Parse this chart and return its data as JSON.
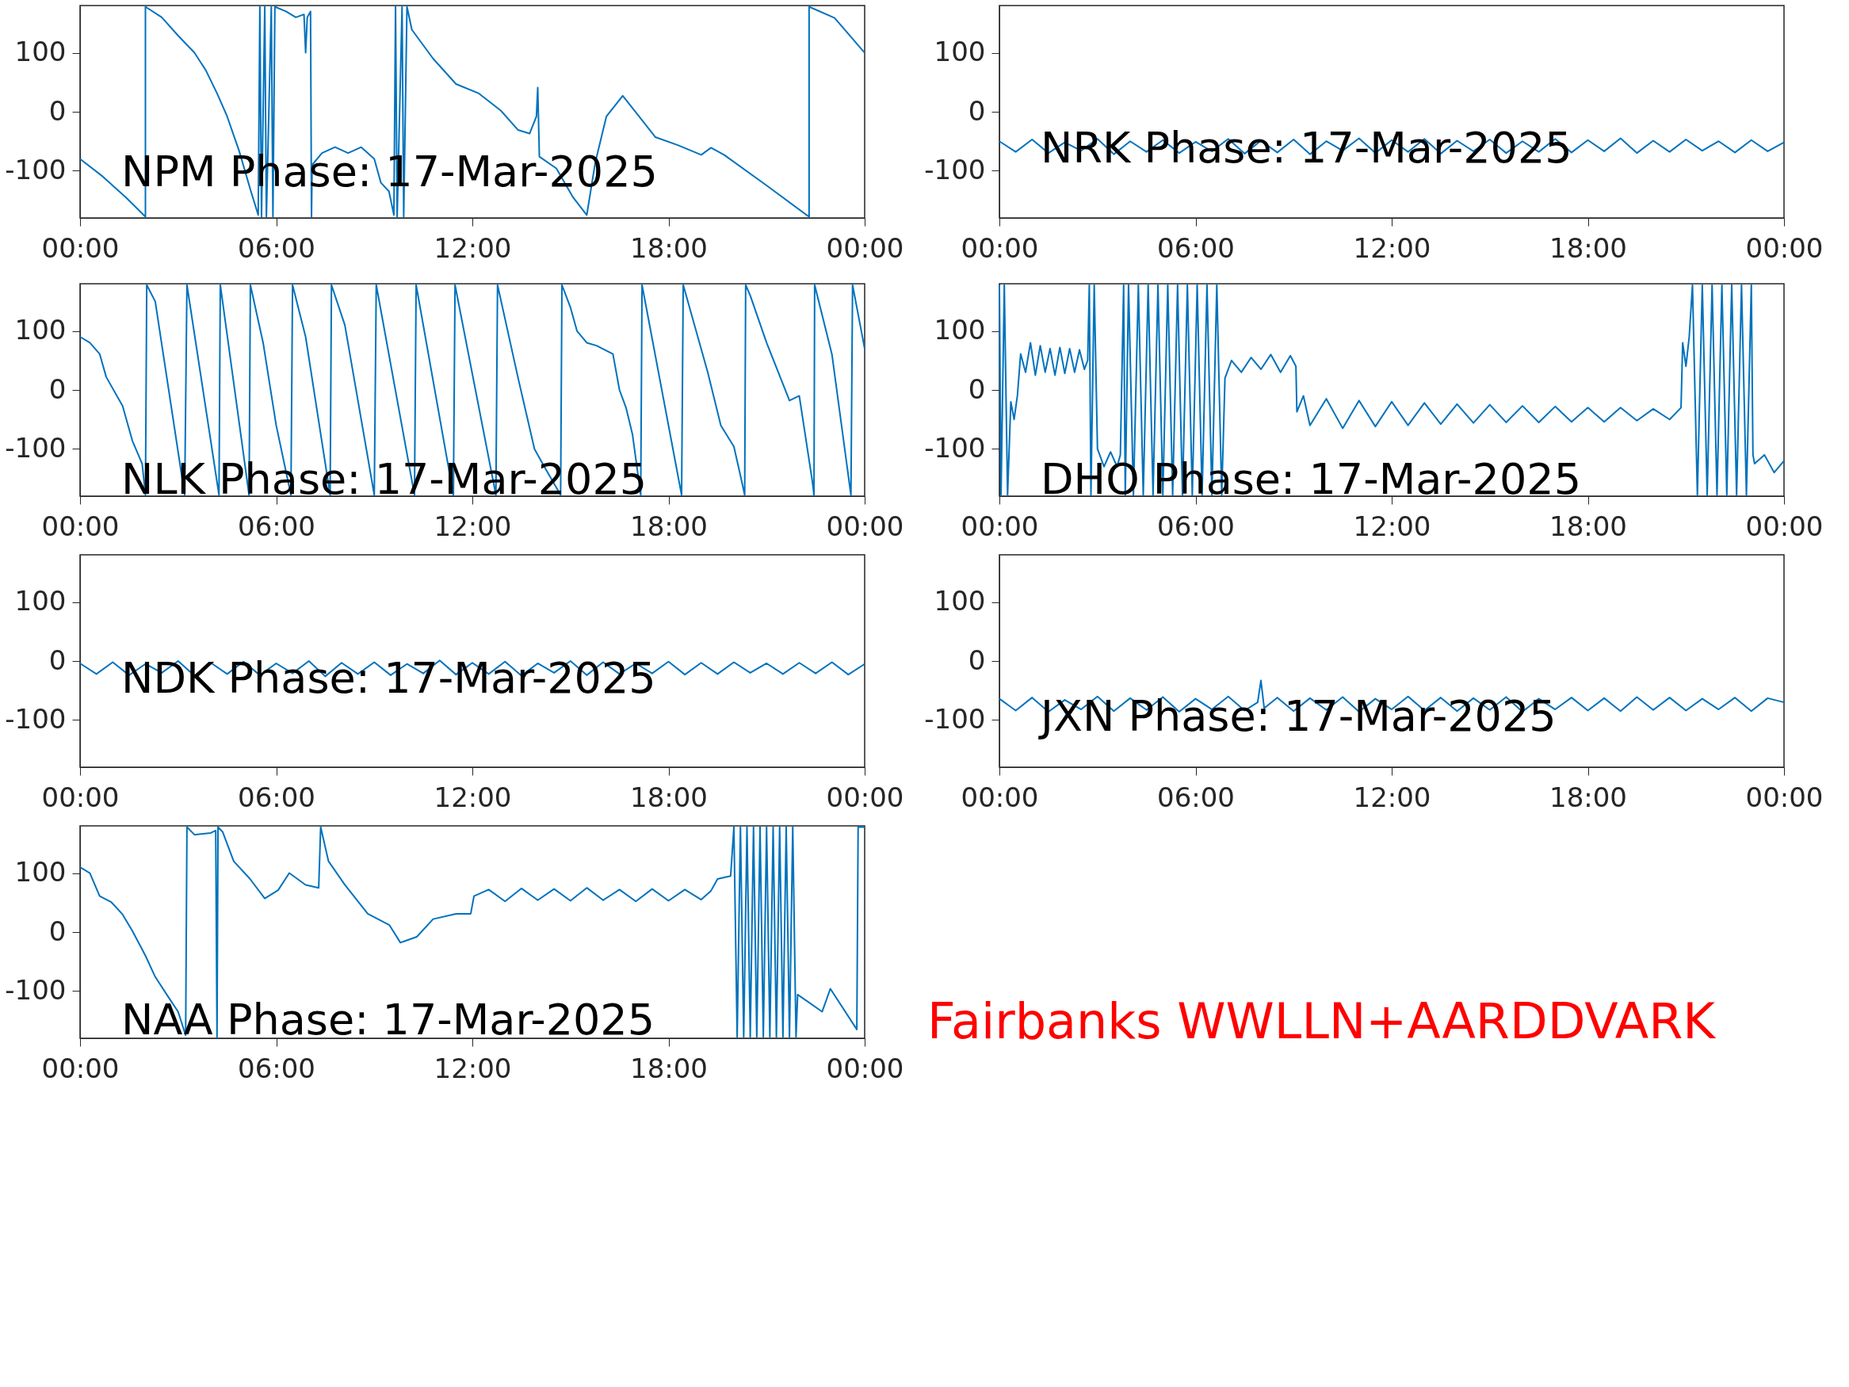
{
  "chart_data": [
    {
      "type": "line",
      "title": "NPM Phase: 17-Mar-2025",
      "xlim": [
        0,
        24
      ],
      "ylim": [
        -180,
        180
      ],
      "yticks": [
        -100,
        0,
        100
      ],
      "xticks": [
        {
          "value": 0,
          "label": "00:00"
        },
        {
          "value": 6,
          "label": "06:00"
        },
        {
          "value": 12,
          "label": "12:00"
        },
        {
          "value": 18,
          "label": "18:00"
        },
        {
          "value": 24,
          "label": "00:00"
        }
      ],
      "series": [
        {
          "color": "#0072bd",
          "x": [
            0,
            0.7,
            1.4,
            2.0,
            2.0,
            2.5,
            3.0,
            3.5,
            3.85,
            4.2,
            4.5,
            4.87,
            5.2,
            5.45,
            5.5,
            5.55,
            5.65,
            5.7,
            5.85,
            5.9,
            5.96,
            6.3,
            6.6,
            6.85,
            6.9,
            6.95,
            7.05,
            7.08,
            7.1,
            7.4,
            7.8,
            8.2,
            8.6,
            9.0,
            9.2,
            9.45,
            9.6,
            9.65,
            9.7,
            9.85,
            9.9,
            10.0,
            10.15,
            10.8,
            11.5,
            12.2,
            12.87,
            13.4,
            13.75,
            13.96,
            14.0,
            14.05,
            14.57,
            15.08,
            15.5,
            15.76,
            16.1,
            16.6,
            17.1,
            17.6,
            18.3,
            19.0,
            19.3,
            19.7,
            21.0,
            22.3,
            22.3,
            23.08,
            24
          ],
          "values": [
            -80,
            -110,
            -145,
            -178,
            178,
            160,
            129,
            100,
            70,
            30,
            -8,
            -67,
            -130,
            -175,
            178,
            -178,
            178,
            -178,
            178,
            -178,
            178,
            170,
            160,
            165,
            100,
            160,
            170,
            -178,
            -90,
            -70,
            -60,
            -70,
            -60,
            -80,
            -120,
            -135,
            -175,
            178,
            -178,
            178,
            -178,
            178,
            139,
            90,
            47,
            31,
            2,
            -31,
            -37,
            -8,
            41,
            -76,
            -96,
            -145,
            -175,
            -86,
            -8,
            27,
            -8,
            -43,
            -57,
            -73,
            -61,
            -73,
            -125,
            -178,
            178,
            159,
            100
          ]
        }
      ]
    },
    {
      "type": "line",
      "title": "NRK Phase: 17-Mar-2025",
      "xlim": [
        0,
        24
      ],
      "ylim": [
        -180,
        180
      ],
      "yticks": [
        -100,
        0,
        100
      ],
      "xticks": [
        {
          "value": 0,
          "label": "00:00"
        },
        {
          "value": 6,
          "label": "06:00"
        },
        {
          "value": 12,
          "label": "12:00"
        },
        {
          "value": 18,
          "label": "18:00"
        },
        {
          "value": 24,
          "label": "00:00"
        }
      ],
      "series": [
        {
          "color": "#0072bd",
          "x": [
            0,
            0.5,
            1,
            1.5,
            2,
            2.5,
            3,
            3.5,
            4,
            4.5,
            5,
            5.5,
            6,
            6.5,
            7,
            7.5,
            8,
            8.5,
            9,
            9.5,
            10,
            10.5,
            11,
            11.5,
            12,
            12.5,
            13,
            13.5,
            14,
            14.5,
            15,
            15.5,
            16,
            16.5,
            17,
            17.5,
            18,
            18.5,
            19,
            19.5,
            20,
            20.5,
            21,
            21.5,
            22,
            22.5,
            23,
            23.5,
            24
          ],
          "values": [
            -50,
            -68,
            -47,
            -70,
            -52,
            -66,
            -46,
            -72,
            -50,
            -68,
            -48,
            -70,
            -51,
            -67,
            -46,
            -71,
            -49,
            -69,
            -47,
            -72,
            -50,
            -66,
            -45,
            -70,
            -48,
            -68,
            -46,
            -71,
            -49,
            -67,
            -47,
            -70,
            -50,
            -68,
            -46,
            -69,
            -48,
            -67,
            -45,
            -70,
            -49,
            -68,
            -47,
            -66,
            -50,
            -69,
            -48,
            -67,
            -52
          ]
        }
      ]
    },
    {
      "type": "line",
      "title": "NLK Phase: 17-Mar-2025",
      "xlim": [
        0,
        24
      ],
      "ylim": [
        -180,
        180
      ],
      "yticks": [
        -100,
        0,
        100
      ],
      "xticks": [
        {
          "value": 0,
          "label": "00:00"
        },
        {
          "value": 6,
          "label": "06:00"
        },
        {
          "value": 12,
          "label": "12:00"
        },
        {
          "value": 18,
          "label": "18:00"
        },
        {
          "value": 24,
          "label": "00:00"
        }
      ],
      "series": [
        {
          "color": "#0072bd",
          "x": [
            0,
            0.3,
            0.6,
            0.8,
            1.3,
            1.6,
            1.9,
            2.0,
            2.04,
            2.3,
            3.2,
            3.27,
            4.25,
            4.29,
            5.17,
            5.21,
            5.6,
            6.0,
            6.45,
            6.5,
            6.9,
            7.65,
            7.69,
            8.1,
            9.0,
            9.06,
            10.23,
            10.28,
            11.42,
            11.47,
            12.72,
            12.77,
            13.4,
            13.9,
            14.2,
            14.7,
            14.74,
            15.0,
            15.2,
            15.5,
            15.8,
            16.3,
            16.5,
            16.7,
            16.9,
            17.15,
            17.19,
            18.4,
            18.45,
            19.2,
            19.6,
            20.0,
            20.2,
            20.33,
            20.36,
            20.5,
            21.0,
            21.7,
            22.0,
            22.4,
            22.45,
            22.47,
            23.0,
            23.58,
            23.63,
            24
          ],
          "values": [
            90,
            80,
            61,
            22,
            -27,
            -86,
            -125,
            -178,
            178,
            150,
            -178,
            178,
            -178,
            178,
            -178,
            178,
            80,
            -60,
            -178,
            178,
            90,
            -178,
            178,
            110,
            -178,
            178,
            -178,
            178,
            -178,
            178,
            -178,
            178,
            20,
            -100,
            -130,
            -178,
            178,
            140,
            100,
            80,
            75,
            61,
            0,
            -30,
            -76,
            -178,
            178,
            -178,
            178,
            30,
            -60,
            -96,
            -145,
            -178,
            178,
            160,
            80,
            -18,
            -10,
            -155,
            -178,
            178,
            60,
            -178,
            178,
            70
          ]
        }
      ]
    },
    {
      "type": "line",
      "title": "DHO Phase: 17-Mar-2025",
      "xlim": [
        0,
        24
      ],
      "ylim": [
        -180,
        180
      ],
      "yticks": [
        -100,
        0,
        100
      ],
      "xticks": [
        {
          "value": 0,
          "label": "00:00"
        },
        {
          "value": 6,
          "label": "06:00"
        },
        {
          "value": 12,
          "label": "12:00"
        },
        {
          "value": 18,
          "label": "18:00"
        },
        {
          "value": 24,
          "label": "00:00"
        }
      ],
      "series": [
        {
          "color": "#0072bd",
          "x": [
            0,
            0.05,
            0.15,
            0.25,
            0.35,
            0.45,
            0.55,
            0.65,
            0.8,
            0.95,
            1.1,
            1.25,
            1.4,
            1.55,
            1.7,
            1.85,
            2.0,
            2.15,
            2.3,
            2.45,
            2.6,
            2.7,
            2.75,
            2.8,
            2.9,
            3.0,
            3.2,
            3.4,
            3.6,
            3.7,
            3.8,
            3.85,
            3.95,
            4.1,
            4.25,
            4.4,
            4.55,
            4.7,
            4.85,
            5.0,
            5.15,
            5.3,
            5.45,
            5.6,
            5.75,
            5.9,
            6.05,
            6.2,
            6.35,
            6.5,
            6.65,
            6.8,
            6.9,
            7.1,
            7.4,
            7.7,
            8.0,
            8.3,
            8.6,
            8.9,
            9.07,
            9.1,
            9.3,
            9.5,
            10,
            10.5,
            11,
            11.5,
            12,
            12.5,
            13,
            13.5,
            14,
            14.5,
            15,
            15.5,
            16,
            16.5,
            17,
            17.5,
            18,
            18.5,
            19,
            19.5,
            20,
            20.5,
            20.85,
            20.9,
            21.0,
            21.1,
            21.2,
            21.35,
            21.5,
            21.65,
            21.8,
            21.95,
            22.1,
            22.25,
            22.4,
            22.55,
            22.7,
            22.85,
            23.0,
            23.05,
            23.1,
            23.4,
            23.7,
            24
          ],
          "values": [
            178,
            -178,
            178,
            -178,
            -20,
            -50,
            -10,
            61,
            30,
            80,
            25,
            75,
            30,
            70,
            25,
            72,
            28,
            70,
            30,
            68,
            35,
            50,
            178,
            -178,
            178,
            -100,
            -130,
            -105,
            -130,
            -110,
            178,
            -178,
            178,
            -178,
            178,
            -178,
            178,
            -178,
            178,
            -178,
            178,
            -178,
            178,
            -178,
            178,
            -178,
            178,
            -178,
            178,
            -178,
            178,
            -178,
            20,
            50,
            30,
            55,
            35,
            60,
            30,
            58,
            40,
            -37,
            -10,
            -60,
            -15,
            -65,
            -18,
            -62,
            -20,
            -60,
            -22,
            -58,
            -24,
            -56,
            -25,
            -55,
            -27,
            -55,
            -28,
            -54,
            -30,
            -54,
            -30,
            -52,
            -32,
            -50,
            -30,
            80,
            40,
            90,
            178,
            -178,
            178,
            -178,
            178,
            -178,
            178,
            -178,
            178,
            -178,
            178,
            -178,
            178,
            -110,
            -125,
            -110,
            -140,
            -120
          ]
        }
      ]
    },
    {
      "type": "line",
      "title": "NDK Phase: 17-Mar-2025",
      "xlim": [
        0,
        24
      ],
      "ylim": [
        -180,
        180
      ],
      "yticks": [
        -100,
        0,
        100
      ],
      "xticks": [
        {
          "value": 0,
          "label": "00:00"
        },
        {
          "value": 6,
          "label": "06:00"
        },
        {
          "value": 12,
          "label": "12:00"
        },
        {
          "value": 18,
          "label": "18:00"
        },
        {
          "value": 24,
          "label": "00:00"
        }
      ],
      "series": [
        {
          "color": "#0072bd",
          "x": [
            0,
            0.5,
            1,
            1.5,
            2,
            2.5,
            3,
            3.5,
            4,
            4.5,
            5,
            5.5,
            6,
            6.5,
            7,
            7.5,
            8,
            8.5,
            9,
            9.5,
            10,
            10.5,
            11,
            11.5,
            12,
            12.5,
            13,
            13.5,
            14,
            14.5,
            15,
            15.5,
            16,
            16.5,
            17,
            17.5,
            18,
            18.5,
            19,
            19.5,
            20,
            20.5,
            21,
            21.5,
            22,
            22.5,
            23,
            23.5,
            24
          ],
          "values": [
            -4,
            -22,
            -2,
            -24,
            -5,
            -20,
            0,
            -25,
            -3,
            -22,
            -1,
            -24,
            -4,
            -21,
            0,
            -26,
            -3,
            -22,
            -2,
            -24,
            -5,
            -21,
            1,
            -23,
            -3,
            -22,
            -1,
            -25,
            -4,
            -20,
            0,
            -24,
            -2,
            -22,
            -4,
            -21,
            -1,
            -23,
            -3,
            -22,
            -2,
            -20,
            -4,
            -22,
            -3,
            -21,
            -2,
            -23,
            -5
          ]
        }
      ]
    },
    {
      "type": "line",
      "title": "JXN Phase: 17-Mar-2025",
      "xlim": [
        0,
        24
      ],
      "ylim": [
        -180,
        180
      ],
      "yticks": [
        -100,
        0,
        100
      ],
      "xticks": [
        {
          "value": 0,
          "label": "00:00"
        },
        {
          "value": 6,
          "label": "06:00"
        },
        {
          "value": 12,
          "label": "12:00"
        },
        {
          "value": 18,
          "label": "18:00"
        },
        {
          "value": 24,
          "label": "00:00"
        }
      ],
      "series": [
        {
          "color": "#0072bd",
          "x": [
            0,
            0.5,
            1,
            1.5,
            2,
            2.5,
            3,
            3.5,
            4,
            4.5,
            5,
            5.5,
            6,
            6.5,
            7,
            7.5,
            7.9,
            8.0,
            8.1,
            8.5,
            9,
            9.5,
            10,
            10.5,
            11,
            11.5,
            12,
            12.5,
            13,
            13.5,
            14,
            14.5,
            15,
            15.5,
            16,
            16.5,
            17,
            17.5,
            18,
            18.5,
            19,
            19.5,
            20,
            20.5,
            21,
            21.5,
            22,
            22.5,
            23,
            23.5,
            24
          ],
          "values": [
            -64,
            -84,
            -62,
            -86,
            -66,
            -82,
            -60,
            -85,
            -63,
            -83,
            -61,
            -86,
            -64,
            -82,
            -60,
            -84,
            -70,
            -33,
            -80,
            -62,
            -85,
            -63,
            -83,
            -61,
            -86,
            -64,
            -82,
            -60,
            -84,
            -62,
            -85,
            -63,
            -83,
            -61,
            -86,
            -64,
            -82,
            -62,
            -84,
            -63,
            -85,
            -61,
            -83,
            -62,
            -84,
            -64,
            -82,
            -62,
            -85,
            -63,
            -70
          ]
        }
      ]
    },
    {
      "type": "line",
      "title": "NAA Phase: 17-Mar-2025",
      "xlim": [
        0,
        24
      ],
      "ylim": [
        -180,
        180
      ],
      "yticks": [
        -100,
        0,
        100
      ],
      "xticks": [
        {
          "value": 0,
          "label": "00:00"
        },
        {
          "value": 6,
          "label": "06:00"
        },
        {
          "value": 12,
          "label": "12:00"
        },
        {
          "value": 18,
          "label": "18:00"
        },
        {
          "value": 24,
          "label": "00:00"
        }
      ],
      "series": [
        {
          "color": "#0072bd",
          "x": [
            0,
            0.3,
            0.6,
            0.95,
            1.3,
            1.6,
            2.0,
            2.3,
            2.7,
            3.0,
            3.23,
            3.27,
            3.5,
            4.0,
            4.15,
            4.19,
            4.22,
            4.36,
            4.7,
            5.2,
            5.65,
            6.06,
            6.4,
            6.9,
            7.3,
            7.36,
            7.6,
            8.1,
            8.8,
            9.46,
            9.8,
            10.3,
            10.8,
            11.5,
            11.95,
            12.05,
            12.5,
            13,
            13.5,
            14,
            14.5,
            15,
            15.5,
            16,
            16.5,
            17,
            17.5,
            18,
            18.5,
            19,
            19.3,
            19.5,
            19.9,
            20.0,
            20.1,
            20.2,
            20.3,
            20.4,
            20.5,
            20.6,
            20.7,
            20.8,
            20.9,
            21.0,
            21.1,
            21.2,
            21.3,
            21.4,
            21.5,
            21.6,
            21.7,
            21.8,
            21.9,
            21.95,
            22.7,
            22.95,
            23.76,
            23.8,
            24
          ],
          "values": [
            110,
            100,
            61,
            51,
            30,
            2,
            -40,
            -76,
            -110,
            -135,
            -175,
            178,
            165,
            168,
            172,
            -178,
            178,
            170,
            120,
            90,
            57,
            71,
            100,
            80,
            75,
            178,
            120,
            80,
            31,
            12,
            -18,
            -8,
            22,
            31,
            31,
            61,
            72,
            52,
            74,
            54,
            73,
            53,
            75,
            54,
            72,
            52,
            73,
            53,
            72,
            55,
            70,
            90,
            95,
            178,
            -178,
            178,
            -178,
            178,
            -178,
            178,
            -178,
            178,
            -178,
            178,
            -178,
            178,
            -178,
            178,
            -178,
            178,
            -178,
            178,
            -178,
            -106,
            -135,
            -96,
            -165,
            178,
            178
          ]
        }
      ]
    },
    {
      "type": "other",
      "annotations": [
        "Fairbanks WWLLN+AARDDVARK"
      ]
    }
  ]
}
